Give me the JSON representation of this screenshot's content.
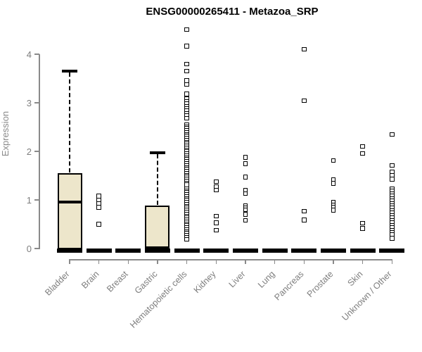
{
  "chart_data": {
    "type": "boxplot",
    "title": "ENSG00000265411 - Metazoa_SRP",
    "ylabel": "Expression",
    "xlabel": "",
    "ylim": [
      0,
      4.6
    ],
    "yticks": [
      0,
      1,
      2,
      3,
      4
    ],
    "grid": false,
    "legend": "none",
    "x_label_rotation_deg": 45,
    "point_style": "open-square",
    "colors": {
      "box_fill": "#EDE6CB",
      "box_border": "#000000",
      "axis": "#8A8A8A",
      "tick_label": "#7E7E7E",
      "title": "#000000",
      "point_border": "#000000"
    },
    "categories": [
      "Bladder",
      "Brain",
      "Breast",
      "Gastric",
      "Hematopoietic cells",
      "Kidney",
      "Liver",
      "Lung",
      "Pancreas",
      "Prostate",
      "Skin",
      "Unknown / Other"
    ],
    "series": [
      {
        "name": "Bladder",
        "box": {
          "q1": 0,
          "median": 0.95,
          "q3": 1.55,
          "whisker_low": 0,
          "whisker_high": 3.65
        },
        "points": []
      },
      {
        "name": "Brain",
        "box": {
          "q1": 0,
          "median": 0,
          "q3": 0,
          "whisker_low": 0,
          "whisker_high": 0
        },
        "points": [
          1.08,
          1.0,
          0.92,
          0.85,
          0.5
        ]
      },
      {
        "name": "Breast",
        "box": {
          "q1": 0,
          "median": 0,
          "q3": 0,
          "whisker_low": 0,
          "whisker_high": 0
        },
        "points": []
      },
      {
        "name": "Gastric",
        "box": {
          "q1": 0,
          "median": 0.02,
          "q3": 0.88,
          "whisker_low": 0,
          "whisker_high": 1.97
        },
        "points": []
      },
      {
        "name": "Hematopoietic cells",
        "box": {
          "q1": 0,
          "median": 0,
          "q3": 0,
          "whisker_low": 0,
          "whisker_high": 0
        },
        "points": [
          4.51,
          4.17,
          3.8,
          3.65,
          3.46,
          3.38,
          3.18,
          3.08,
          3.03,
          2.98,
          2.93,
          2.88,
          2.83,
          2.78,
          2.73,
          2.68,
          2.55,
          2.51,
          2.47,
          2.43,
          2.39,
          2.35,
          2.31,
          2.27,
          2.23,
          2.19,
          2.15,
          2.11,
          2.07,
          2.03,
          1.99,
          1.95,
          1.91,
          1.87,
          1.83,
          1.79,
          1.75,
          1.71,
          1.67,
          1.63,
          1.59,
          1.55,
          1.51,
          1.47,
          1.43,
          1.39,
          1.35,
          1.31,
          1.23,
          1.19,
          1.15,
          1.11,
          1.07,
          1.03,
          0.99,
          0.95,
          0.91,
          0.87,
          0.83,
          0.79,
          0.75,
          0.71,
          0.67,
          0.63,
          0.59,
          0.55,
          0.51,
          0.47,
          0.43,
          0.39,
          0.35,
          0.31,
          0.27,
          0.23,
          0.19
        ]
      },
      {
        "name": "Kidney",
        "box": {
          "q1": 0,
          "median": 0,
          "q3": 0,
          "whisker_low": 0,
          "whisker_high": 0
        },
        "points": [
          1.38,
          1.27,
          1.2,
          0.67,
          0.53,
          0.38
        ]
      },
      {
        "name": "Liver",
        "box": {
          "q1": 0,
          "median": 0,
          "q3": 0,
          "whisker_low": 0,
          "whisker_high": 0
        },
        "points": [
          1.88,
          1.75,
          1.47,
          1.2,
          1.13,
          0.88,
          0.84,
          0.8,
          0.7,
          0.58
        ]
      },
      {
        "name": "Lung",
        "box": {
          "q1": 0,
          "median": 0,
          "q3": 0,
          "whisker_low": 0,
          "whisker_high": 0
        },
        "points": []
      },
      {
        "name": "Pancreas",
        "box": {
          "q1": 0,
          "median": 0,
          "q3": 0,
          "whisker_low": 0,
          "whisker_high": 0
        },
        "points": [
          4.1,
          3.04,
          0.77,
          0.59
        ]
      },
      {
        "name": "Prostate",
        "box": {
          "q1": 0,
          "median": 0,
          "q3": 0,
          "whisker_low": 0,
          "whisker_high": 0
        },
        "points": [
          1.81,
          1.42,
          1.34,
          0.95,
          0.9,
          0.85,
          0.79
        ]
      },
      {
        "name": "Skin",
        "box": {
          "q1": 0,
          "median": 0,
          "q3": 0,
          "whisker_low": 0,
          "whisker_high": 0
        },
        "points": [
          2.1,
          1.96,
          0.52,
          0.41
        ]
      },
      {
        "name": "Unknown / Other",
        "box": {
          "q1": 0,
          "median": 0,
          "q3": 0,
          "whisker_low": 0,
          "whisker_high": 0
        },
        "points": [
          2.35,
          1.71,
          1.57,
          1.5,
          1.43,
          1.23,
          1.18,
          1.13,
          1.08,
          1.03,
          0.98,
          0.93,
          0.88,
          0.83,
          0.78,
          0.73,
          0.68,
          0.63,
          0.58,
          0.53,
          0.48,
          0.43,
          0.38,
          0.33,
          0.28,
          0.21
        ]
      }
    ]
  }
}
